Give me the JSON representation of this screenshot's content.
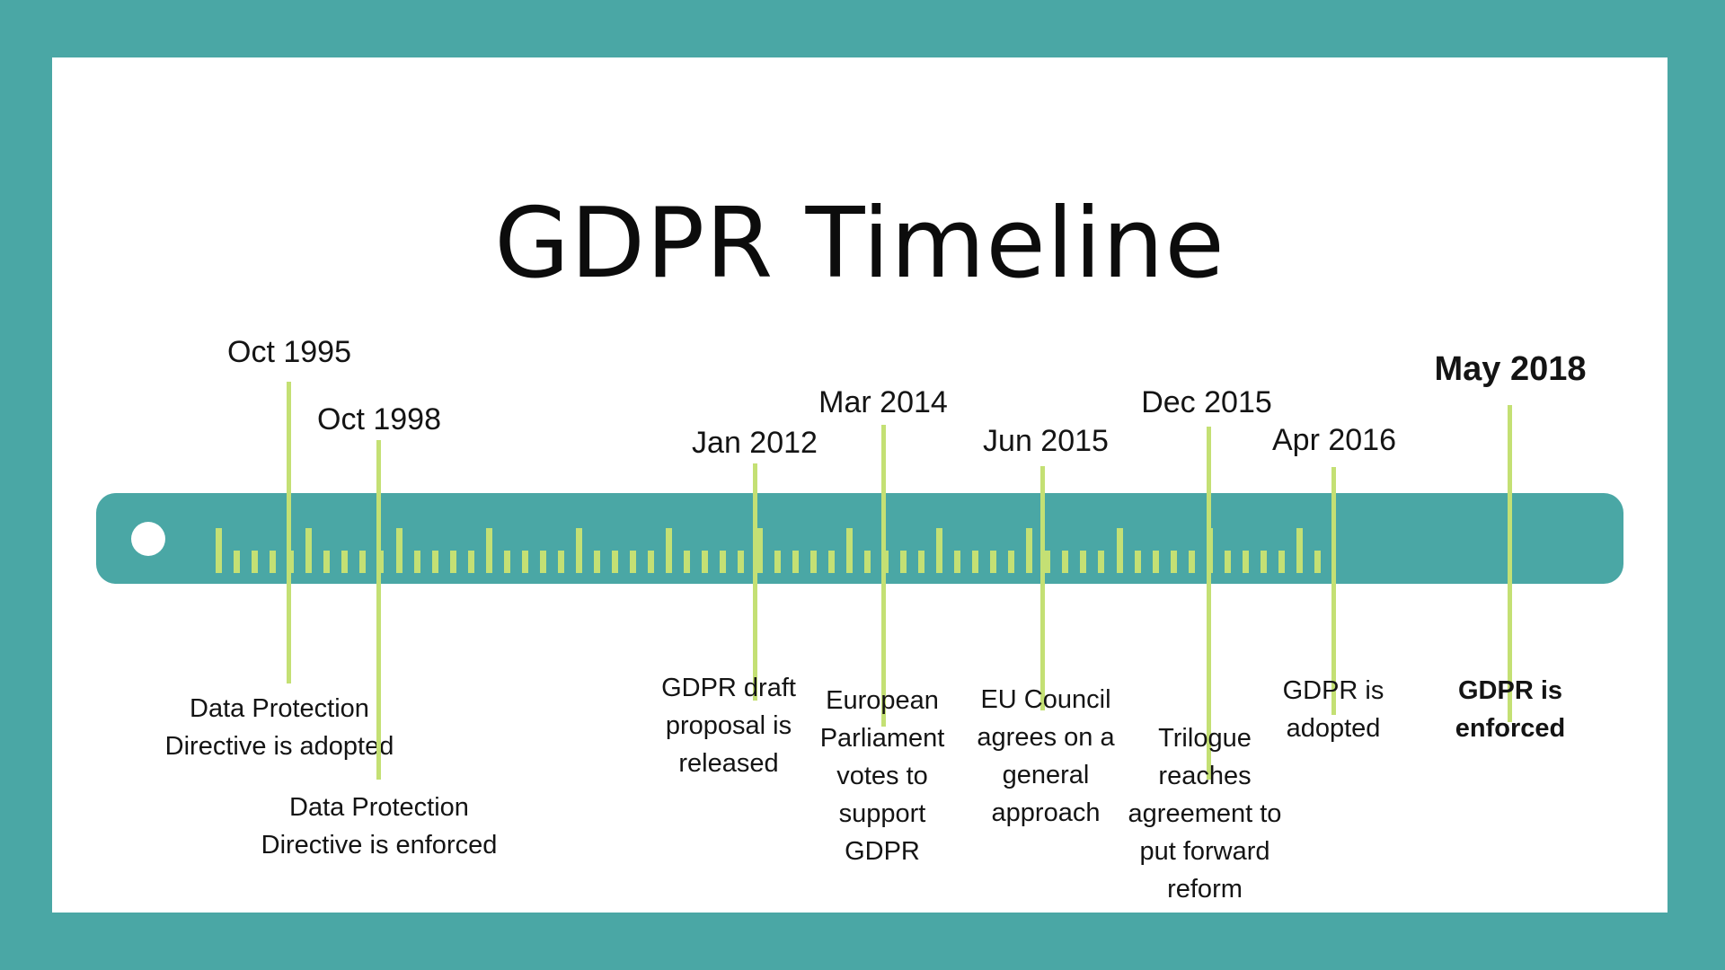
{
  "title": "GDPR Timeline",
  "colors": {
    "background": "#4aa7a5",
    "panel": "#ffffff",
    "bar": "#4aa7a5",
    "accent": "#c4e074",
    "text": "#141414"
  },
  "events": [
    {
      "date": "Oct 1995",
      "description": "Data Protection\nDirective is adopted",
      "emphasis": false
    },
    {
      "date": "Oct 1998",
      "description": "Data Protection\nDirective is enforced",
      "emphasis": false
    },
    {
      "date": "Jan 2012",
      "description": "GDPR draft\nproposal is\nreleased",
      "emphasis": false
    },
    {
      "date": "Mar 2014",
      "description": "European\nParliament\nvotes to\nsupport\nGDPR",
      "emphasis": false
    },
    {
      "date": "Jun 2015",
      "description": "EU Council\nagrees on a\ngeneral\napproach",
      "emphasis": false
    },
    {
      "date": "Dec 2015",
      "description": "Trilogue\nreaches\nagreement to\nput forward\nreform",
      "emphasis": false
    },
    {
      "date": "Apr 2016",
      "description": "GDPR is\nadopted",
      "emphasis": false
    },
    {
      "date": "May 2018",
      "description": "GDPR is\nenforced",
      "emphasis": true
    }
  ]
}
